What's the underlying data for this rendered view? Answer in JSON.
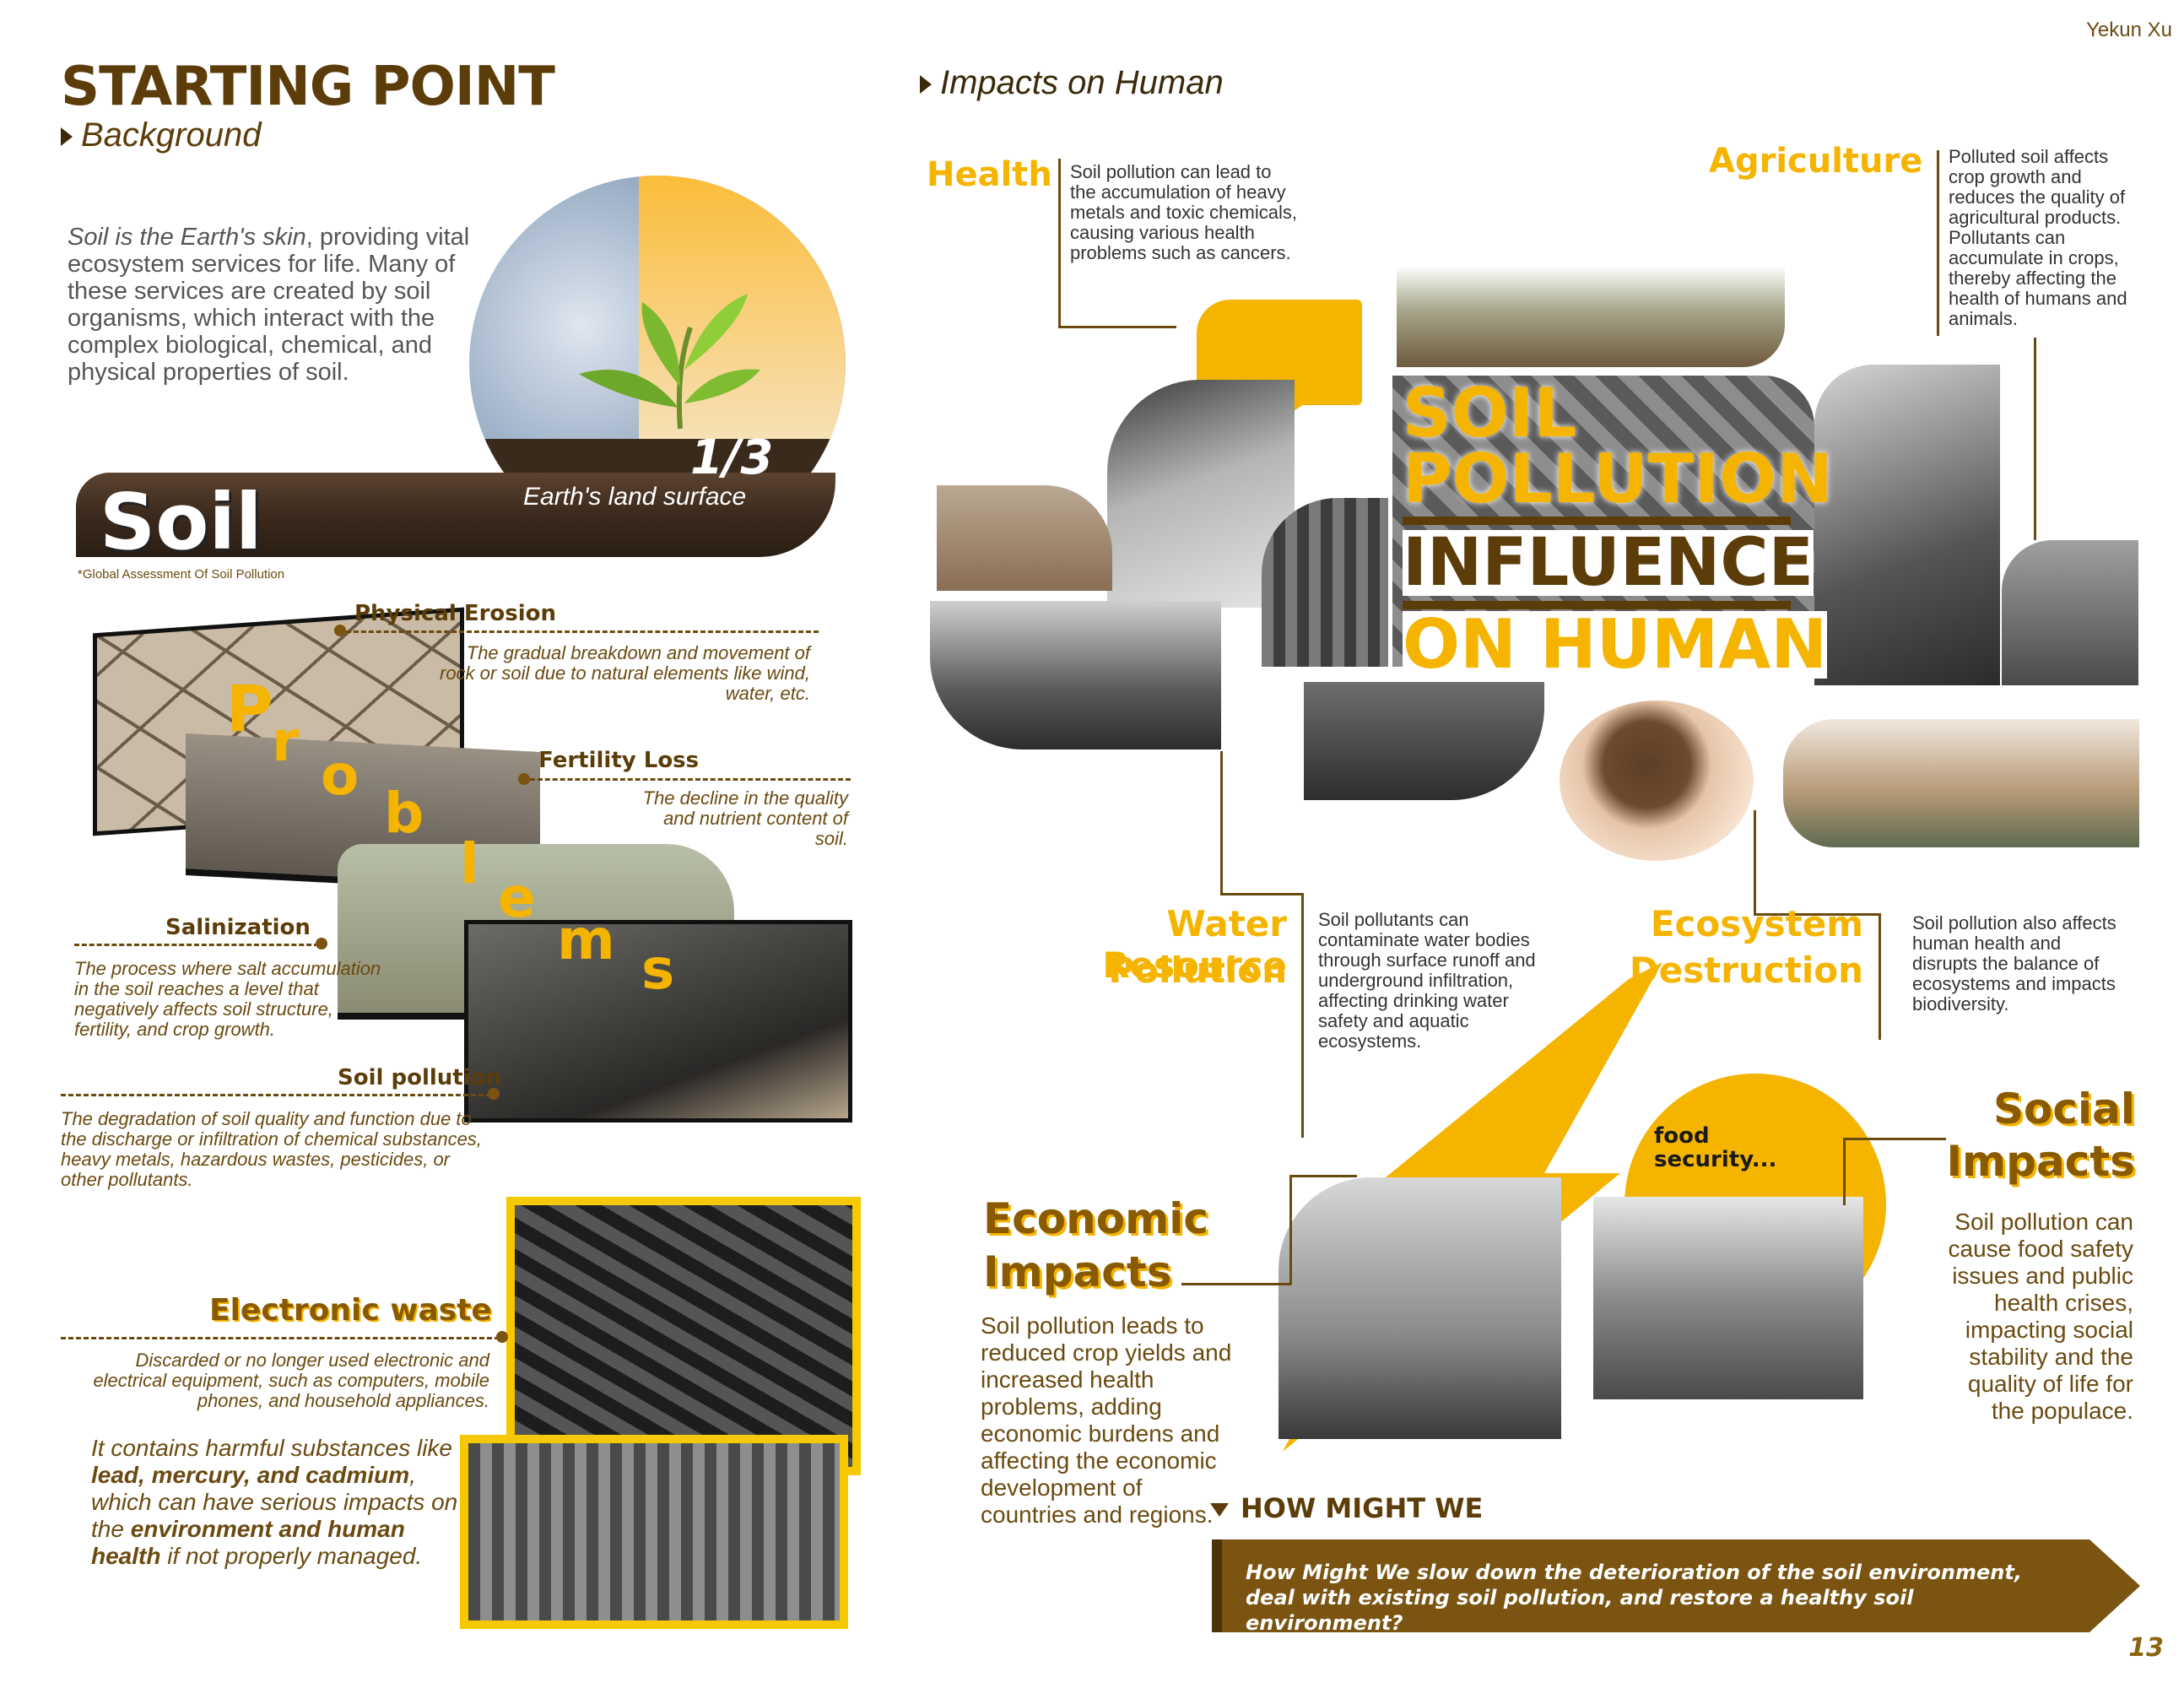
{
  "header": {
    "author": "Yekun Xu",
    "page_number": "13"
  },
  "left": {
    "title": "STARTING POINT",
    "subtitle": "Background",
    "intro_em": "Soil is the Earth's skin",
    "intro_rest": ", providing vital ecosystem services for life. Many of these services are created by soil organisms, which interact with the complex biological, chemical, and physical properties of soil.",
    "fraction": "1/3",
    "fraction_caption": "Earth's land surface",
    "soil_word": "Soil",
    "footnote": "*Global Assessment Of Soil Pollution",
    "problems_letters": [
      "P",
      "r",
      "o",
      "b",
      "l",
      "e",
      "m",
      "s"
    ],
    "problems": [
      {
        "name": "Physical Erosion",
        "text": "The gradual breakdown and movement of rock or soil due to natural elements like wind, water, etc."
      },
      {
        "name": "Fertility Loss",
        "text": "The decline in the quality and nutrient content of soil."
      },
      {
        "name": "Salinization",
        "text": "The process where salt accumulation in the soil reaches a level that negatively affects soil structure, fertility, and crop growth."
      },
      {
        "name": "Soil pollution",
        "text": "The degradation of soil quality and function due to the discharge or infiltration of chemical substances, heavy metals, hazardous wastes, pesticides, or other pollutants."
      }
    ],
    "ewaste": {
      "title": "Electronic waste",
      "text": "Discarded or no longer used electronic and electrical equipment, such as computers, mobile phones, and household appliances.",
      "warn_1": "It contains harmful substances like ",
      "warn_bold_1": "lead, mercury, and cadmium",
      "warn_2": ", which can have serious impacts on the ",
      "warn_bold_2": "environment and human health",
      "warn_3": " if not properly managed."
    }
  },
  "right": {
    "section": "Impacts on Human",
    "headline": [
      "SOIL",
      "POLLUTION",
      "INFLUENCE",
      "ON HUMAN"
    ],
    "health": {
      "title": "Health",
      "text": "Soil pollution can lead to the accumulation of heavy metals and toxic chemicals, causing various health problems such as cancers."
    },
    "agriculture": {
      "title": "Agriculture",
      "text": "Polluted soil affects crop growth and reduces the quality of agricultural products. Pollutants can accumulate in crops, thereby affecting the health of humans and animals."
    },
    "water": {
      "title_1": "Water Resource",
      "title_2": "Pollution",
      "text": "Soil pollutants can contaminate water bodies through surface runoff and underground infiltration, affecting drinking water safety and aquatic ecosystems."
    },
    "ecosystem": {
      "title_1": "Ecosystem",
      "title_2": "Destruction",
      "text": "Soil pollution also affects human health and disrupts the balance of ecosystems and impacts biodiversity."
    },
    "economic": {
      "title_1": "Economic",
      "title_2": "Impacts",
      "text": "Soil pollution leads to reduced crop yields and increased health problems, adding economic burdens and affecting the economic development of countries and regions."
    },
    "social": {
      "title_1": "Social",
      "title_2": "Impacts",
      "text": "Soil pollution can cause food safety issues and public health crises, impacting social stability and the quality of life for the populace."
    },
    "food_security": "food security...",
    "hmw_label": "HOW MIGHT WE",
    "hmw_question": "How Might We slow down the deterioration of the soil environment, deal with existing soil pollution, and restore a healthy soil environment?"
  },
  "colors": {
    "accent": "#f5b400",
    "brown": "#5c3d0a",
    "hmw_bar": "#7a5410"
  }
}
